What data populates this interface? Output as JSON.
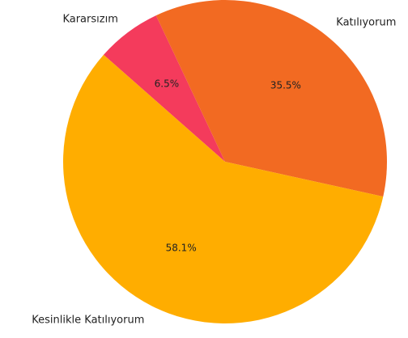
{
  "chart_data": {
    "type": "pie",
    "categories": [
      "Kararsızım",
      "Katılıyorum",
      "Kesinlikle Katılıyorum"
    ],
    "values": [
      6.5,
      35.5,
      58.1
    ],
    "value_labels": [
      "6.5%",
      "35.5%",
      "58.1%"
    ],
    "colors": [
      "#f43b5c",
      "#f26a22",
      "#ffad00"
    ]
  }
}
